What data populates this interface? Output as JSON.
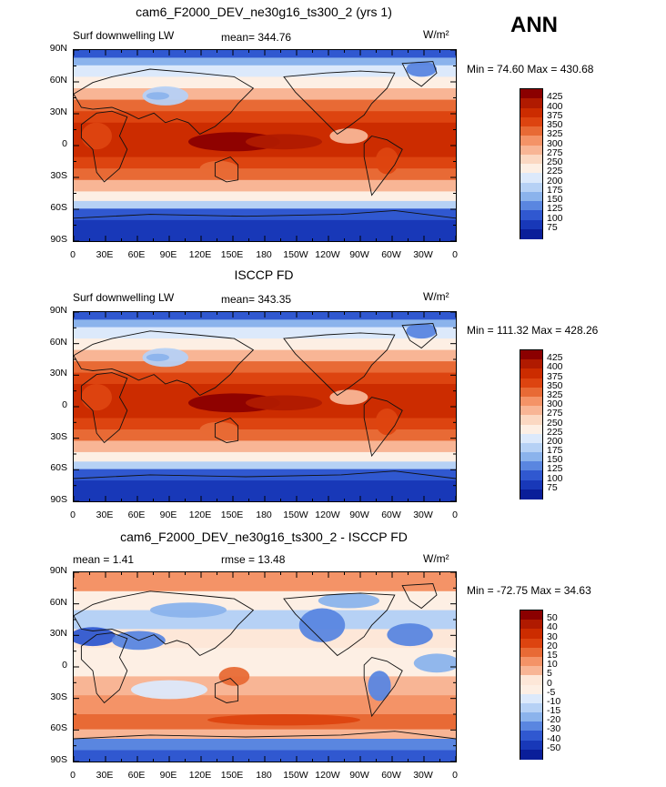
{
  "season": "ANN",
  "lon_ticks": [
    "0",
    "30E",
    "60E",
    "90E",
    "120E",
    "150E",
    "180",
    "150W",
    "120W",
    "90W",
    "60W",
    "30W",
    "0"
  ],
  "lat_ticks": [
    "90N",
    "60N",
    "30N",
    "0",
    "30S",
    "60S",
    "90S"
  ],
  "panels": [
    {
      "title": "cam6_F2000_DEV_ne30g16_ts300_2 (yrs 1)",
      "left_label": "Surf downwelling LW",
      "center_label": "mean=  344.76",
      "units": "W/m²",
      "minmax": "Min =   74.60  Max = 430.68",
      "colorbar": [
        "425",
        "400",
        "375",
        "350",
        "325",
        "300",
        "275",
        "250",
        "225",
        "200",
        "175",
        "150",
        "125",
        "100",
        "75"
      ],
      "colors": [
        "#8b0000",
        "#b01a00",
        "#cc2c00",
        "#dd4410",
        "#e86a35",
        "#f49367",
        "#f8b595",
        "#fbd8c2",
        "#fdefe4",
        "#dce9fb",
        "#b6d1f5",
        "#8bb3ec",
        "#5a86e0",
        "#3058d0",
        "#1838b8",
        "#0a1e99"
      ]
    },
    {
      "title": "ISCCP FD",
      "left_label": "Surf downwelling LW",
      "center_label": "mean=  343.35",
      "units": "W/m²",
      "minmax": "Min = 111.32  Max = 428.26",
      "colorbar": [
        "425",
        "400",
        "375",
        "350",
        "325",
        "300",
        "275",
        "250",
        "225",
        "200",
        "175",
        "150",
        "125",
        "100",
        "75"
      ],
      "colors": [
        "#8b0000",
        "#b01a00",
        "#cc2c00",
        "#dd4410",
        "#e86a35",
        "#f49367",
        "#f8b595",
        "#fbd8c2",
        "#fdefe4",
        "#dce9fb",
        "#b6d1f5",
        "#8bb3ec",
        "#5a86e0",
        "#3058d0",
        "#1838b8",
        "#0a1e99"
      ]
    },
    {
      "title": "cam6_F2000_DEV_ne30g16_ts300_2 - ISCCP FD",
      "left_label": "mean =     1.41",
      "center_label": "rmse =    13.48",
      "units": "W/m²",
      "minmax": "Min = -72.75  Max =   34.63",
      "colorbar": [
        "50",
        "40",
        "30",
        "20",
        "15",
        "10",
        "5",
        "0",
        "-5",
        "-10",
        "-15",
        "-20",
        "-30",
        "-40",
        "-50"
      ],
      "colors": [
        "#8b0000",
        "#b01a00",
        "#cc2c00",
        "#dd4410",
        "#e86a35",
        "#f49367",
        "#f8b595",
        "#fde7d8",
        "#fdefe4",
        "#dce9fb",
        "#b6d1f5",
        "#8bb3ec",
        "#5a86e0",
        "#3058d0",
        "#1838b8",
        "#0a1e99"
      ]
    }
  ]
}
